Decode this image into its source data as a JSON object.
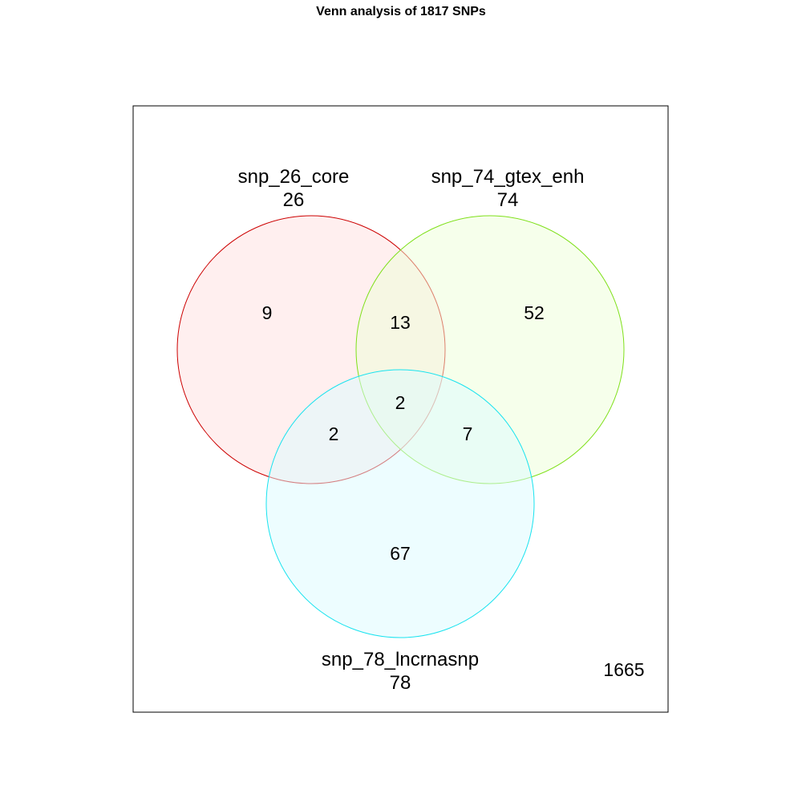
{
  "title": "Venn analysis of 1817 SNPs",
  "sets": [
    {
      "name": "snp_26_core",
      "total": "26",
      "stroke": "#cc0000",
      "fill": "#ffe0e0"
    },
    {
      "name": "snp_74_gtex_enh",
      "total": "74",
      "stroke": "#7fe01a",
      "fill": "#eeffd8"
    },
    {
      "name": "snp_78_lncrnasnp",
      "total": "78",
      "stroke": "#19e3ef",
      "fill": "#dcfcff"
    }
  ],
  "regions": {
    "core_only": "9",
    "gtex_only": "52",
    "lnc_only": "67",
    "core_gtex": "13",
    "core_lnc": "2",
    "gtex_lnc": "7",
    "all_three": "2",
    "outside": "1665"
  }
}
